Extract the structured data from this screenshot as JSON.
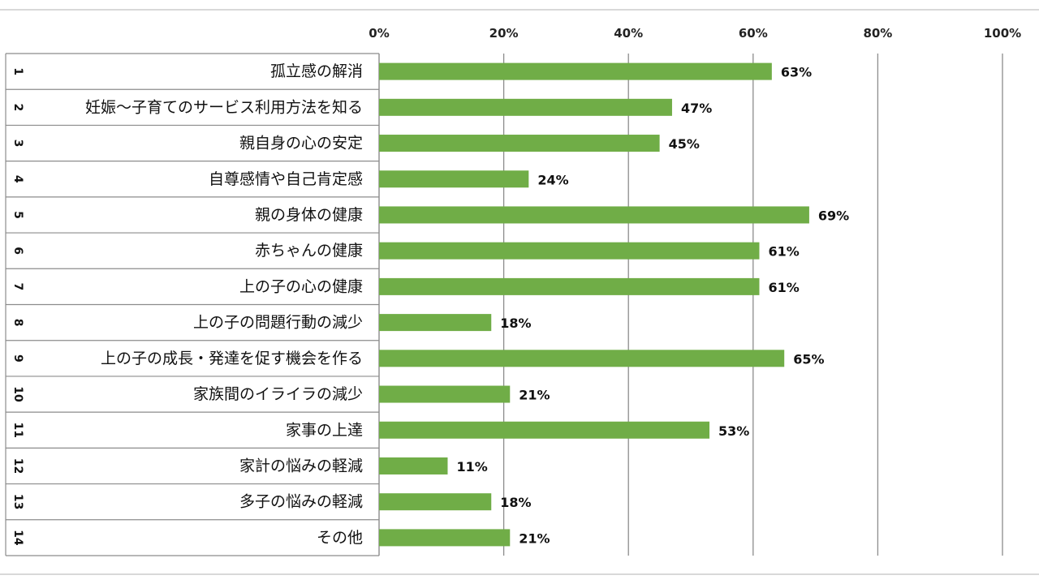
{
  "chart_data": {
    "type": "bar",
    "orientation": "horizontal",
    "x_ticks": [
      "0%",
      "20%",
      "40%",
      "60%",
      "80%",
      "100%"
    ],
    "xlim": [
      0,
      100
    ],
    "grid": "vertical",
    "bar_color": "#70ad47",
    "rows": [
      {
        "num": "1",
        "label": "孤立感の解消",
        "value": 63,
        "value_label": "63%"
      },
      {
        "num": "2",
        "label": "妊娠～子育てのサービス利用方法を知る",
        "value": 47,
        "value_label": "47%"
      },
      {
        "num": "3",
        "label": "親自身の心の安定",
        "value": 45,
        "value_label": "45%"
      },
      {
        "num": "4",
        "label": "自尊感情や自己肯定感",
        "value": 24,
        "value_label": "24%"
      },
      {
        "num": "5",
        "label": "親の身体の健康",
        "value": 69,
        "value_label": "69%"
      },
      {
        "num": "6",
        "label": "赤ちゃんの健康",
        "value": 61,
        "value_label": "61%"
      },
      {
        "num": "7",
        "label": "上の子の心の健康",
        "value": 61,
        "value_label": "61%"
      },
      {
        "num": "8",
        "label": "上の子の問題行動の減少",
        "value": 18,
        "value_label": "18%"
      },
      {
        "num": "9",
        "label": "上の子の成長・発達を促す機会を作る",
        "value": 65,
        "value_label": "65%"
      },
      {
        "num": "10",
        "label": "家族間のイライラの減少",
        "value": 21,
        "value_label": "21%"
      },
      {
        "num": "11",
        "label": "家事の上達",
        "value": 53,
        "value_label": "53%"
      },
      {
        "num": "12",
        "label": "家計の悩みの軽減",
        "value": 11,
        "value_label": "11%"
      },
      {
        "num": "13",
        "label": "多子の悩みの軽減",
        "value": 18,
        "value_label": "18%"
      },
      {
        "num": "14",
        "label": "その他",
        "value": 21,
        "value_label": "21%"
      }
    ]
  }
}
